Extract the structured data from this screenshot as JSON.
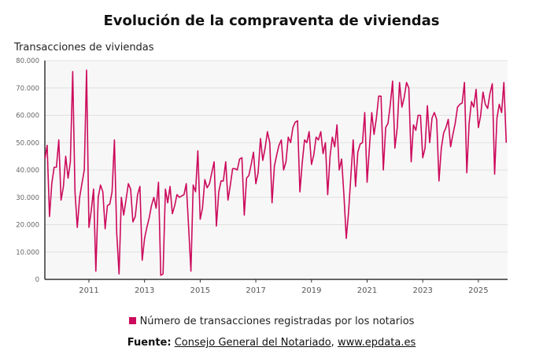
{
  "chart_data": {
    "type": "line",
    "title": "Evolución de la compraventa de viviendas",
    "ylabel": "Transacciones de viviendas",
    "xlabel": "",
    "ylim": [
      0,
      80000
    ],
    "yticks": [
      "0",
      "10.000",
      "20.000",
      "30.000",
      "40.000",
      "50.000",
      "60.000",
      "70.000",
      "80.000"
    ],
    "xticks": [
      "2011",
      "2013",
      "2015",
      "2017",
      "2019",
      "2021",
      "2023",
      "2025"
    ],
    "grid": true,
    "legend_position": "bottom",
    "color": "#cc0a5c",
    "series": [
      {
        "name": "Número de transacciones registradas por los notarios",
        "x": [
          "2009-06",
          "2009-07",
          "2009-08",
          "2009-09",
          "2009-10",
          "2009-11",
          "2009-12",
          "2010-01",
          "2010-02",
          "2010-03",
          "2010-04",
          "2010-05",
          "2010-06",
          "2010-07",
          "2010-08",
          "2010-09",
          "2010-10",
          "2010-11",
          "2010-12",
          "2011-01",
          "2011-02",
          "2011-03",
          "2011-04",
          "2011-05",
          "2011-06",
          "2011-07",
          "2011-08",
          "2011-09",
          "2011-10",
          "2011-11",
          "2011-12",
          "2012-01",
          "2012-02",
          "2012-03",
          "2012-04",
          "2012-05",
          "2012-06",
          "2012-07",
          "2012-08",
          "2012-09",
          "2012-10",
          "2012-11",
          "2012-12",
          "2013-01",
          "2013-02",
          "2013-03",
          "2013-04",
          "2013-05",
          "2013-06",
          "2013-07",
          "2013-08",
          "2013-09",
          "2013-10",
          "2013-11",
          "2013-12",
          "2014-01",
          "2014-02",
          "2014-03",
          "2014-04",
          "2014-05",
          "2014-06",
          "2014-07",
          "2014-08",
          "2014-09",
          "2014-10",
          "2014-11",
          "2014-12",
          "2015-01",
          "2015-02",
          "2015-03",
          "2015-04",
          "2015-05",
          "2015-06",
          "2015-07",
          "2015-08",
          "2015-09",
          "2015-10",
          "2015-11",
          "2015-12",
          "2016-01",
          "2016-02",
          "2016-03",
          "2016-04",
          "2016-05",
          "2016-06",
          "2016-07",
          "2016-08",
          "2016-09",
          "2016-10",
          "2016-11",
          "2016-12",
          "2017-01",
          "2017-02",
          "2017-03",
          "2017-04",
          "2017-05",
          "2017-06",
          "2017-07",
          "2017-08",
          "2017-09",
          "2017-10",
          "2017-11",
          "2017-12",
          "2018-01",
          "2018-02",
          "2018-03",
          "2018-04",
          "2018-05",
          "2018-06",
          "2018-07",
          "2018-08",
          "2018-09",
          "2018-10",
          "2018-11",
          "2018-12",
          "2019-01",
          "2019-02",
          "2019-03",
          "2019-04",
          "2019-05",
          "2019-06",
          "2019-07",
          "2019-08",
          "2019-09",
          "2019-10",
          "2019-11",
          "2019-12",
          "2020-01",
          "2020-02",
          "2020-03",
          "2020-04",
          "2020-05",
          "2020-06",
          "2020-07",
          "2020-08",
          "2020-09",
          "2020-10",
          "2020-11",
          "2020-12",
          "2021-01",
          "2021-02",
          "2021-03",
          "2021-04",
          "2021-05",
          "2021-06",
          "2021-07",
          "2021-08",
          "2021-09",
          "2021-10",
          "2021-11",
          "2021-12",
          "2022-01",
          "2022-02",
          "2022-03",
          "2022-04",
          "2022-05",
          "2022-06",
          "2022-07",
          "2022-08",
          "2022-09",
          "2022-10",
          "2022-11",
          "2022-12",
          "2023-01",
          "2023-02",
          "2023-03",
          "2023-04",
          "2023-05",
          "2023-06",
          "2023-07",
          "2023-08",
          "2023-09",
          "2023-10",
          "2023-11",
          "2023-12",
          "2024-01",
          "2024-02",
          "2024-03",
          "2024-04",
          "2024-05",
          "2024-06",
          "2024-07",
          "2024-08",
          "2024-09",
          "2024-10",
          "2024-11",
          "2024-12",
          "2025-01",
          "2025-02",
          "2025-03",
          "2025-04",
          "2025-05",
          "2025-06",
          "2025-07",
          "2025-08",
          "2025-09",
          "2025-10",
          "2025-11",
          "2025-12",
          "2026-01"
        ],
        "values": [
          44000,
          49000,
          23000,
          35000,
          41000,
          41000,
          51000,
          29000,
          34000,
          45000,
          37000,
          43000,
          76000,
          32000,
          19000,
          30000,
          35000,
          40000,
          76500,
          19000,
          25000,
          33000,
          3000,
          30000,
          34500,
          32000,
          18500,
          27000,
          27500,
          32000,
          51000,
          17000,
          2000,
          30000,
          23500,
          29000,
          35000,
          33000,
          21000,
          23000,
          31000,
          34000,
          7000,
          15000,
          19000,
          22500,
          27000,
          30000,
          26000,
          35500,
          1500,
          2000,
          33000,
          28000,
          34000,
          24000,
          27000,
          31000,
          30000,
          30500,
          31000,
          35000,
          19000,
          3000,
          34500,
          32000,
          47000,
          22000,
          26000,
          36500,
          33500,
          35000,
          39000,
          43000,
          19500,
          32000,
          36000,
          36000,
          43000,
          29000,
          34500,
          40500,
          40500,
          40000,
          44000,
          44500,
          23500,
          37000,
          38000,
          42000,
          46500,
          35000,
          39000,
          51500,
          43500,
          48000,
          54000,
          50000,
          28000,
          41500,
          45500,
          49000,
          51000,
          40000,
          43000,
          52000,
          50000,
          55500,
          57500,
          58000,
          32000,
          42500,
          51000,
          50000,
          54000,
          42000,
          45500,
          52000,
          51000,
          54000,
          46000,
          50000,
          31000,
          45000,
          52000,
          48500,
          56500,
          40000,
          44000,
          31000,
          15000,
          24500,
          38000,
          51000,
          34000,
          46500,
          49500,
          50000,
          61000,
          35500,
          48000,
          61000,
          53000,
          59000,
          67000,
          67000,
          40000,
          55500,
          57000,
          64000,
          72500,
          48000,
          55500,
          72000,
          63000,
          66500,
          72000,
          70000,
          43000,
          56500,
          54500,
          60000,
          60000,
          44500,
          48000,
          63500,
          50000,
          59000,
          61000,
          58500,
          36000,
          48000,
          53500,
          55500,
          58500,
          48500,
          53000,
          57000,
          63000,
          64000,
          64500,
          72000,
          39000,
          57000,
          65000,
          63000,
          69500,
          55500,
          60000,
          68500,
          64000,
          62500,
          68000,
          71500,
          38500,
          59000,
          64000,
          61000,
          72000,
          50000
        ]
      }
    ]
  },
  "source": {
    "label": "Fuente:",
    "org": "Consejo General del Notariado",
    "separator": ",",
    "site": "www.epdata.es"
  }
}
